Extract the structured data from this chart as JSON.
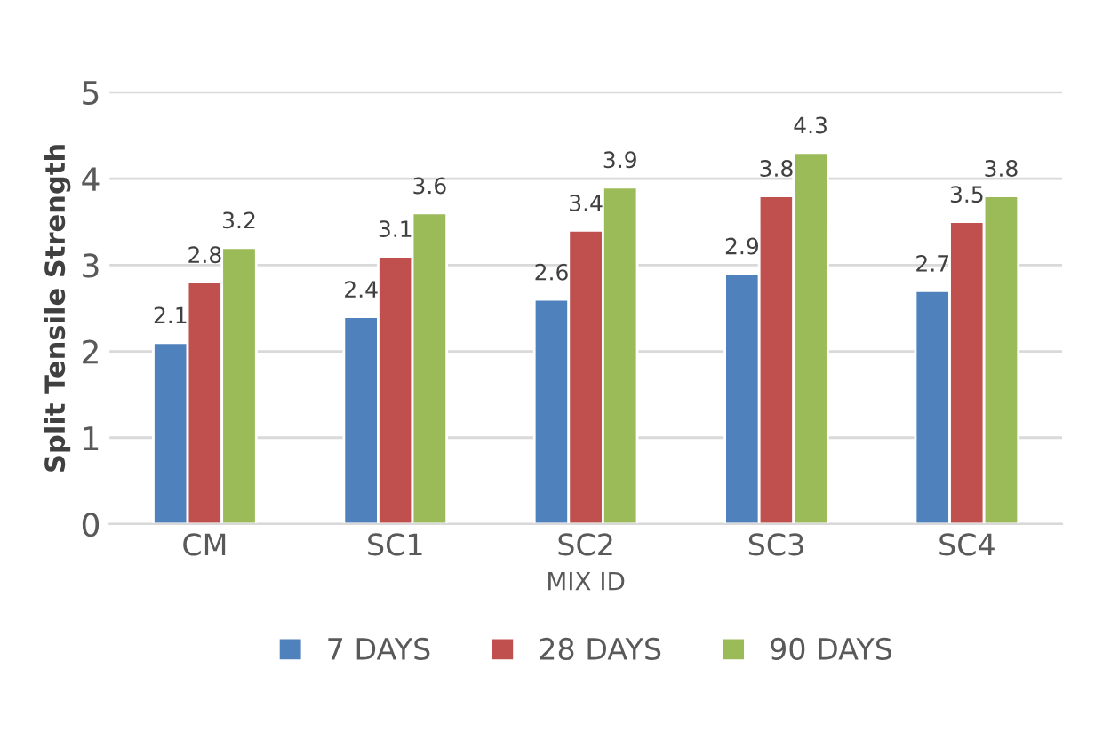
{
  "chart_data": {
    "type": "bar",
    "xlabel": "MIX ID",
    "ylabel": "Split Tensile Strength",
    "categories": [
      "CM",
      "SC1",
      "SC2",
      "SC3",
      "SC4"
    ],
    "series": [
      {
        "name": "7 DAYS",
        "color": "#4f81bd",
        "values": [
          2.1,
          2.4,
          2.6,
          2.9,
          2.7
        ]
      },
      {
        "name": "28 DAYS",
        "color": "#c0504d",
        "values": [
          2.8,
          3.1,
          3.4,
          3.8,
          3.5
        ]
      },
      {
        "name": "90 DAYS",
        "color": "#9bbb59",
        "values": [
          3.2,
          3.6,
          3.9,
          4.3,
          3.8
        ]
      }
    ],
    "ylim": [
      0,
      5
    ],
    "yticks": [
      0,
      1,
      2,
      3,
      4,
      5
    ],
    "grid": "y",
    "legend": "bottom",
    "data_labels": true
  }
}
